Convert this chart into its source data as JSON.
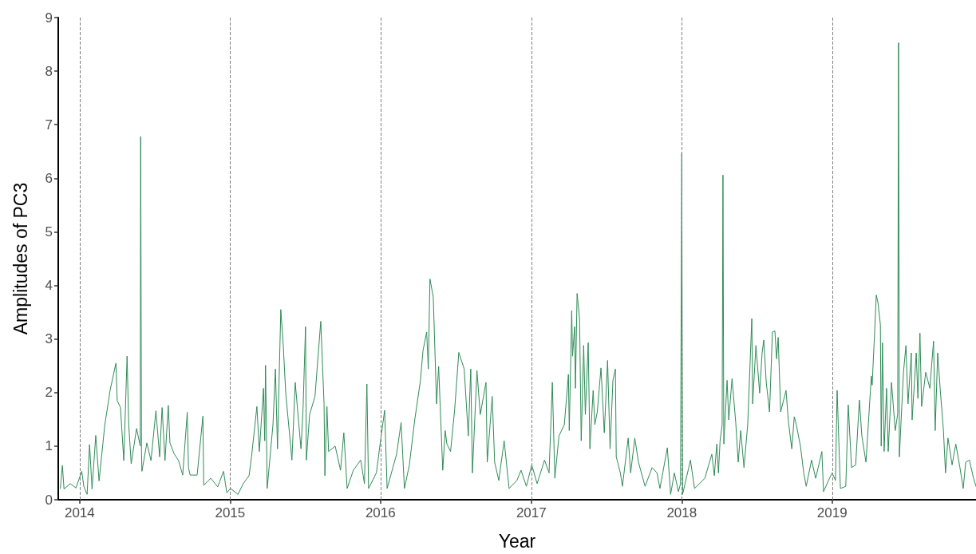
{
  "chart_data": {
    "type": "line",
    "xlabel": "Year",
    "ylabel": "Amplitudes of PC3",
    "color": "#2e8b57",
    "xlim": [
      "2013-11-10",
      "2019-12-16"
    ],
    "xticks": [
      "2014",
      "2015",
      "2016",
      "2017",
      "2018",
      "2019"
    ],
    "ylim": [
      0,
      9
    ],
    "yticks": [
      0,
      1,
      2,
      3,
      4,
      5,
      6,
      7,
      8,
      9
    ],
    "ref_lines": [
      {
        "axis": "x",
        "value": "2014",
        "color": "#808080",
        "line_style": "dashed"
      },
      {
        "axis": "x",
        "value": "2015",
        "color": "#808080",
        "line_style": "dashed"
      },
      {
        "axis": "x",
        "value": "2016",
        "color": "#808080",
        "line_style": "dashed"
      },
      {
        "axis": "x",
        "value": "2017",
        "color": "#808080",
        "line_style": "dashed"
      },
      {
        "axis": "x",
        "value": "2018",
        "color": "#808080",
        "line_style": "dashed"
      },
      {
        "axis": "x",
        "value": "2019",
        "color": "#808080",
        "line_style": "dashed"
      }
    ],
    "x": [
      "2013-11-15",
      "2013-11-20",
      "2013-11-24",
      "2013-12-09",
      "2013-12-23",
      "2014-01-06",
      "2014-01-11",
      "2014-01-19",
      "2014-01-25",
      "2014-01-31",
      "2014-02-09",
      "2014-02-17",
      "2014-03-03",
      "2014-03-16",
      "2014-03-30",
      "2014-04-02",
      "2014-04-10",
      "2014-04-18",
      "2014-04-26",
      "2014-04-30",
      "2014-05-06",
      "2014-05-19",
      "2014-05-28",
      "2014-05-29",
      "2014-05-31",
      "2014-06-01",
      "2014-06-13",
      "2014-06-23",
      "2014-07-05",
      "2014-07-14",
      "2014-07-20",
      "2014-07-27",
      "2014-08-04",
      "2014-08-08",
      "2014-08-18",
      "2014-08-29",
      "2014-09-08",
      "2014-09-19",
      "2014-09-22",
      "2014-09-26",
      "2014-10-13",
      "2014-10-27",
      "2014-10-29",
      "2014-11-15",
      "2014-12-02",
      "2014-12-16",
      "2014-12-24",
      "2015-01-02",
      "2015-01-20",
      "2015-02-02",
      "2015-02-16",
      "2015-02-22",
      "2015-03-07",
      "2015-03-13",
      "2015-03-23",
      "2015-03-26",
      "2015-03-28",
      "2015-04-01",
      "2015-04-15",
      "2015-04-21",
      "2015-04-26",
      "2015-05-04",
      "2015-05-10",
      "2015-05-16",
      "2015-05-31",
      "2015-06-08",
      "2015-06-22",
      "2015-06-27",
      "2015-07-03",
      "2015-07-05",
      "2015-07-13",
      "2015-07-26",
      "2015-08-09",
      "2015-08-17",
      "2015-08-19",
      "2015-08-24",
      "2015-08-28",
      "2015-09-13",
      "2015-09-26",
      "2015-10-04",
      "2015-10-12",
      "2015-10-27",
      "2015-11-14",
      "2015-11-23",
      "2015-11-29",
      "2015-12-03",
      "2015-12-22",
      "2016-01-01",
      "2016-01-11",
      "2016-01-17",
      "2016-02-09",
      "2016-02-20",
      "2016-02-28",
      "2016-03-11",
      "2016-03-24",
      "2016-04-07",
      "2016-04-13",
      "2016-04-22",
      "2016-04-26",
      "2016-04-30",
      "2016-05-08",
      "2016-05-16",
      "2016-05-21",
      "2016-05-31",
      "2016-06-06",
      "2016-06-10",
      "2016-06-19",
      "2016-06-29",
      "2016-07-09",
      "2016-07-22",
      "2016-08-01",
      "2016-08-07",
      "2016-08-11",
      "2016-08-22",
      "2016-08-30",
      "2016-09-13",
      "2016-09-16",
      "2016-09-28",
      "2016-10-04",
      "2016-10-14",
      "2016-10-27",
      "2016-11-08",
      "2016-11-27",
      "2016-12-07",
      "2016-12-20",
      "2017-01-02",
      "2017-01-15",
      "2017-02-02",
      "2017-02-13",
      "2017-02-21",
      "2017-02-27",
      "2017-03-09",
      "2017-03-22",
      "2017-04-01",
      "2017-04-03",
      "2017-04-09",
      "2017-04-11",
      "2017-04-16",
      "2017-04-18",
      "2017-04-22",
      "2017-04-28",
      "2017-05-02",
      "2017-05-08",
      "2017-05-12",
      "2017-05-19",
      "2017-05-23",
      "2017-05-31",
      "2017-06-04",
      "2017-06-10",
      "2017-06-19",
      "2017-06-27",
      "2017-07-05",
      "2017-07-11",
      "2017-07-18",
      "2017-07-24",
      "2017-07-26",
      "2017-08-05",
      "2017-08-10",
      "2017-08-24",
      "2017-08-30",
      "2017-09-09",
      "2017-09-18",
      "2017-10-04",
      "2017-10-21",
      "2017-11-02",
      "2017-11-09",
      "2017-11-27",
      "2017-12-05",
      "2017-12-14",
      "2017-12-24",
      "2017-12-29",
      "2018-01-01",
      "2018-01-03",
      "2018-01-18",
      "2018-01-22",
      "2018-02-01",
      "2018-02-26",
      "2018-03-15",
      "2018-03-21",
      "2018-03-27",
      "2018-03-31",
      "2018-04-04",
      "2018-04-09",
      "2018-04-11",
      "2018-04-13",
      "2018-04-21",
      "2018-04-25",
      "2018-05-03",
      "2018-05-12",
      "2018-05-18",
      "2018-05-24",
      "2018-06-01",
      "2018-06-10",
      "2018-06-20",
      "2018-06-22",
      "2018-06-30",
      "2018-07-09",
      "2018-07-15",
      "2018-07-19",
      "2018-07-25",
      "2018-08-02",
      "2018-08-09",
      "2018-08-15",
      "2018-08-19",
      "2018-08-23",
      "2018-08-29",
      "2018-09-11",
      "2018-09-17",
      "2018-09-25",
      "2018-10-01",
      "2018-10-06",
      "2018-10-16",
      "2018-10-24",
      "2018-10-30",
      "2018-11-12",
      "2018-11-22",
      "2018-11-28",
      "2018-12-07",
      "2018-12-11",
      "2018-12-23",
      "2019-01-01",
      "2019-01-09",
      "2019-01-13",
      "2019-01-21",
      "2019-02-03",
      "2019-02-09",
      "2019-02-17",
      "2019-02-27",
      "2019-03-08",
      "2019-03-14",
      "2019-03-24",
      "2019-03-30",
      "2019-04-06",
      "2019-04-08",
      "2019-04-14",
      "2019-04-18",
      "2019-04-22",
      "2019-04-28",
      "2019-04-30",
      "2019-05-03",
      "2019-05-07",
      "2019-05-13",
      "2019-05-17",
      "2019-05-25",
      "2019-06-03",
      "2019-06-09",
      "2019-06-11",
      "2019-06-13",
      "2019-06-23",
      "2019-06-29",
      "2019-07-04",
      "2019-07-12",
      "2019-07-14",
      "2019-07-24",
      "2019-07-28",
      "2019-08-02",
      "2019-08-06",
      "2019-08-16",
      "2019-08-26",
      "2019-09-04",
      "2019-09-08",
      "2019-09-14",
      "2019-09-20",
      "2019-09-28",
      "2019-10-03",
      "2019-10-09",
      "2019-10-19",
      "2019-10-28",
      "2019-11-07",
      "2019-11-15",
      "2019-11-21",
      "2019-11-30",
      "2019-12-10",
      "2019-12-16"
    ],
    "values": [
      0.21,
      0.64,
      0.2,
      0.3,
      0.22,
      0.53,
      0.25,
      0.1,
      1.03,
      0.2,
      1.2,
      0.35,
      1.4,
      2.05,
      2.55,
      1.85,
      1.72,
      0.73,
      2.68,
      1.4,
      0.67,
      1.33,
      1.0,
      6.78,
      0.9,
      0.53,
      1.06,
      0.73,
      1.66,
      0.8,
      1.72,
      0.73,
      1.76,
      1.06,
      0.86,
      0.73,
      0.46,
      1.63,
      0.6,
      0.46,
      0.46,
      1.56,
      0.27,
      0.4,
      0.24,
      0.53,
      0.13,
      0.21,
      0.1,
      0.3,
      0.45,
      0.8,
      1.74,
      0.9,
      2.08,
      1.1,
      2.51,
      0.21,
      1.4,
      2.44,
      0.95,
      3.55,
      2.88,
      1.99,
      0.74,
      2.19,
      0.95,
      1.69,
      3.23,
      0.74,
      1.59,
      1.93,
      3.33,
      1.79,
      0.45,
      1.74,
      0.9,
      1.0,
      0.55,
      1.25,
      0.21,
      0.55,
      0.74,
      0.3,
      2.16,
      0.21,
      0.5,
      1.1,
      1.67,
      0.21,
      0.85,
      1.44,
      0.21,
      0.65,
      1.49,
      2.23,
      2.78,
      3.13,
      2.44,
      4.12,
      3.78,
      1.79,
      2.49,
      0.55,
      1.29,
      1.04,
      0.9,
      1.69,
      2.75,
      2.44,
      1.19,
      2.44,
      0.5,
      2.41,
      1.59,
      2.19,
      0.7,
      1.93,
      0.7,
      0.36,
      1.1,
      0.21,
      0.36,
      0.55,
      0.25,
      0.65,
      0.3,
      0.74,
      0.5,
      2.19,
      0.4,
      1.19,
      1.4,
      2.34,
      1.29,
      3.53,
      2.68,
      3.23,
      2.08,
      3.85,
      3.38,
      1.1,
      2.88,
      1.59,
      2.93,
      0.95,
      2.04,
      1.4,
      1.64,
      2.46,
      1.25,
      2.6,
      0.95,
      2.23,
      2.44,
      0.8,
      0.5,
      0.25,
      1.15,
      0.5,
      1.15,
      0.7,
      0.25,
      0.6,
      0.5,
      0.21,
      0.97,
      0.1,
      0.5,
      0.15,
      0.3,
      6.47,
      0.1,
      0.6,
      0.74,
      0.21,
      0.4,
      0.85,
      0.45,
      1.04,
      0.5,
      1.1,
      1.4,
      6.06,
      1.04,
      2.23,
      1.49,
      2.26,
      1.44,
      0.7,
      1.29,
      0.6,
      1.4,
      3.38,
      1.79,
      2.88,
      1.99,
      2.74,
      2.98,
      2.19,
      1.64,
      3.13,
      3.15,
      2.63,
      3.03,
      1.64,
      2.04,
      1.44,
      0.95,
      1.55,
      1.4,
      1.0,
      0.5,
      0.25,
      0.74,
      0.4,
      0.6,
      0.9,
      0.15,
      0.36,
      0.5,
      0.36,
      2.04,
      0.21,
      0.25,
      1.77,
      0.6,
      0.65,
      1.86,
      1.19,
      0.7,
      1.44,
      2.31,
      2.14,
      3.13,
      3.82,
      3.68,
      3.27,
      1.0,
      2.93,
      0.9,
      2.08,
      0.9,
      2.19,
      1.29,
      1.6,
      8.53,
      0.8,
      2.38,
      2.88,
      1.79,
      2.74,
      1.49,
      2.74,
      1.89,
      3.11,
      1.74,
      2.38,
      2.08,
      2.96,
      1.29,
      2.74,
      2.08,
      1.29,
      0.5,
      1.15,
      0.65,
      1.04,
      0.6,
      0.21,
      0.7,
      0.74,
      0.4,
      0.25
    ]
  }
}
